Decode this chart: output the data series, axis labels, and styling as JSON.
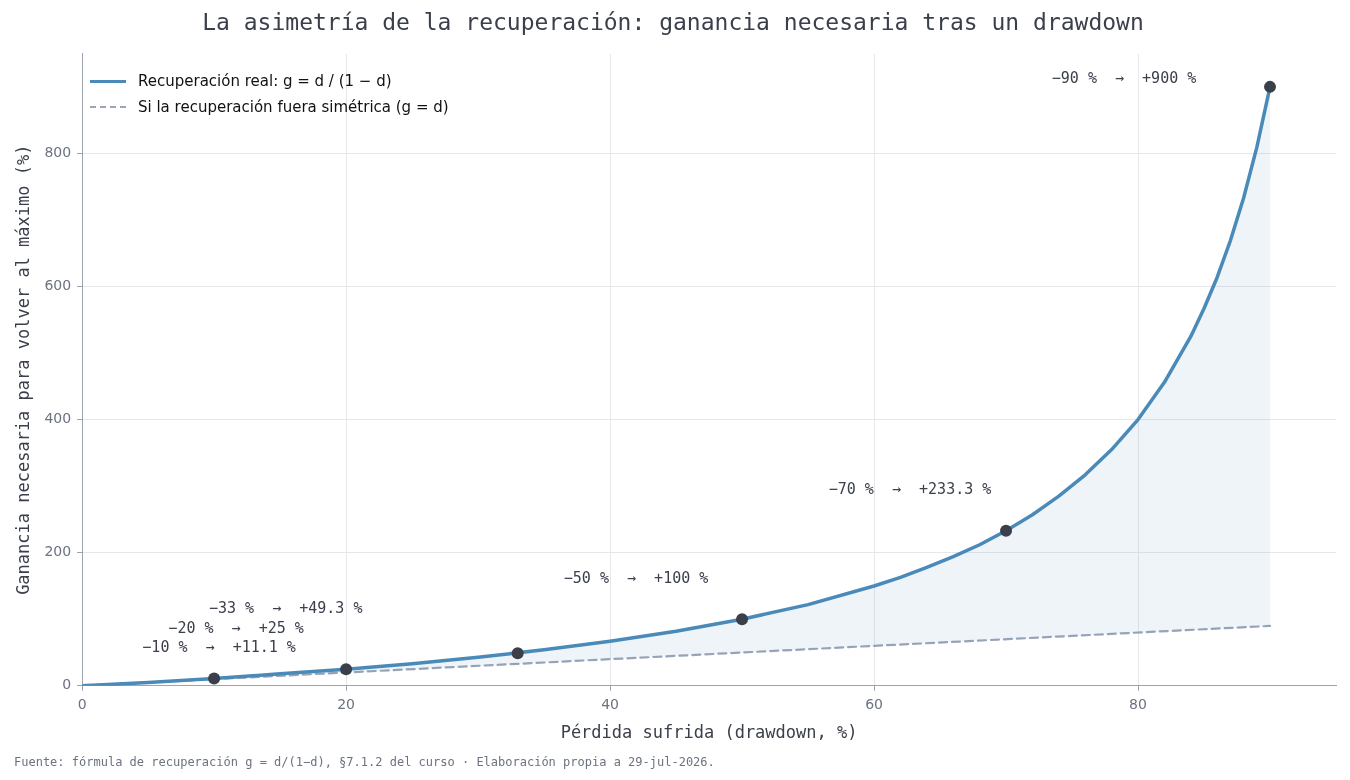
{
  "chart_data": {
    "type": "line",
    "title": "La asimetría de la recuperación: ganancia necesaria tras un drawdown",
    "xlabel": "Pérdida sufrida (drawdown, %)",
    "ylabel": "Ganancia necesaria para volver al máximo (%)",
    "xlim": [
      0,
      95
    ],
    "ylim": [
      0,
      950
    ],
    "xticks": [
      0,
      20,
      40,
      60,
      80
    ],
    "yticks": [
      0,
      200,
      400,
      600,
      800
    ],
    "grid": true,
    "legend": "top left",
    "series": [
      {
        "name": "Recuperación real:  g = d / (1 − d)",
        "type": "area",
        "color": "#4a8ab8",
        "line_style": "solid",
        "x": [
          0,
          5,
          10,
          15,
          20,
          25,
          30,
          35,
          40,
          45,
          50,
          55,
          60,
          62,
          64,
          66,
          68,
          70,
          72,
          74,
          76,
          78,
          80,
          82,
          84,
          85,
          86,
          87,
          88,
          89,
          90
        ],
        "values": [
          0,
          5,
          11,
          18,
          25,
          33,
          43,
          54,
          67,
          82,
          100,
          122,
          150,
          163,
          178,
          194,
          212,
          233,
          257,
          285,
          317,
          355,
          400,
          456,
          525,
          567,
          614,
          669,
          733,
          809,
          900
        ]
      },
      {
        "name": "Si la recuperación fuera simétrica (g = d)",
        "color": "#9aa5b8",
        "line_style": "dashed",
        "x": [
          0,
          90
        ],
        "values": [
          0,
          90
        ]
      },
      {
        "type": "scatter",
        "color": "#3a3f4b",
        "marker": "circle",
        "x": [
          10,
          20,
          33,
          50,
          70,
          90
        ],
        "values": [
          11,
          25,
          49,
          100,
          233,
          900
        ]
      }
    ],
    "annotations": [
      "−10 %  →  +11.1 %",
      "−20 %  →  +25 %",
      "−33 %  →  +49.3 %",
      "−50 %  →  +100 %",
      "−70 %  →  +233.3 %",
      "−90 %  →  +900 %",
      "Fuente: fórmula de recuperación g = d/(1−d), §7.1.2 del curso · Elaboración propia a 29-jul-2026."
    ]
  }
}
